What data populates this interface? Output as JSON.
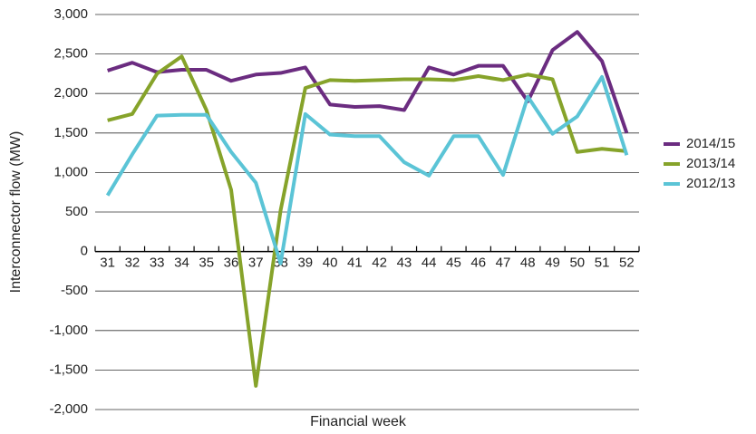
{
  "chart_data": {
    "type": "line",
    "x_label": "Financial week",
    "y_label": "Interconnector flow (MW)",
    "categories": [
      "31",
      "32",
      "33",
      "34",
      "35",
      "36",
      "37",
      "38",
      "39",
      "40",
      "41",
      "42",
      "43",
      "44",
      "45",
      "46",
      "47",
      "48",
      "49",
      "50",
      "51",
      "52"
    ],
    "series": [
      {
        "name": "2014/15",
        "color": "#6b2c80",
        "values": [
          2290,
          2390,
          2270,
          2300,
          2300,
          2160,
          2240,
          2260,
          2330,
          1860,
          1830,
          1840,
          1790,
          2330,
          2240,
          2350,
          2350,
          1900,
          2550,
          2780,
          2410,
          1500
        ]
      },
      {
        "name": "2013/14",
        "color": "#86a32a",
        "values": [
          1660,
          1740,
          2250,
          2470,
          1790,
          780,
          -1700,
          520,
          2070,
          2170,
          2160,
          2170,
          2180,
          2180,
          2170,
          2220,
          2170,
          2240,
          2180,
          1260,
          1300,
          1270
        ]
      },
      {
        "name": "2012/13",
        "color": "#5bc4d6",
        "values": [
          710,
          1230,
          1720,
          1730,
          1730,
          1260,
          870,
          -150,
          1740,
          1480,
          1460,
          1460,
          1130,
          960,
          1460,
          1460,
          970,
          1960,
          1490,
          1710,
          2210,
          1220
        ]
      }
    ],
    "ylim": [
      -2000,
      3000
    ],
    "yticks": [
      {
        "value": -2000,
        "label": "-2,000"
      },
      {
        "value": -1500,
        "label": "-1,500"
      },
      {
        "value": -1000,
        "label": "-1,000"
      },
      -500,
      0,
      500,
      {
        "value": 1000,
        "label": "1,000"
      },
      {
        "value": 1500,
        "label": "1,500"
      },
      {
        "value": 2000,
        "label": "2,000"
      },
      {
        "value": 2500,
        "label": "2,500"
      },
      {
        "value": 3000,
        "label": "3,000"
      }
    ],
    "grid": true,
    "legend": "right"
  }
}
